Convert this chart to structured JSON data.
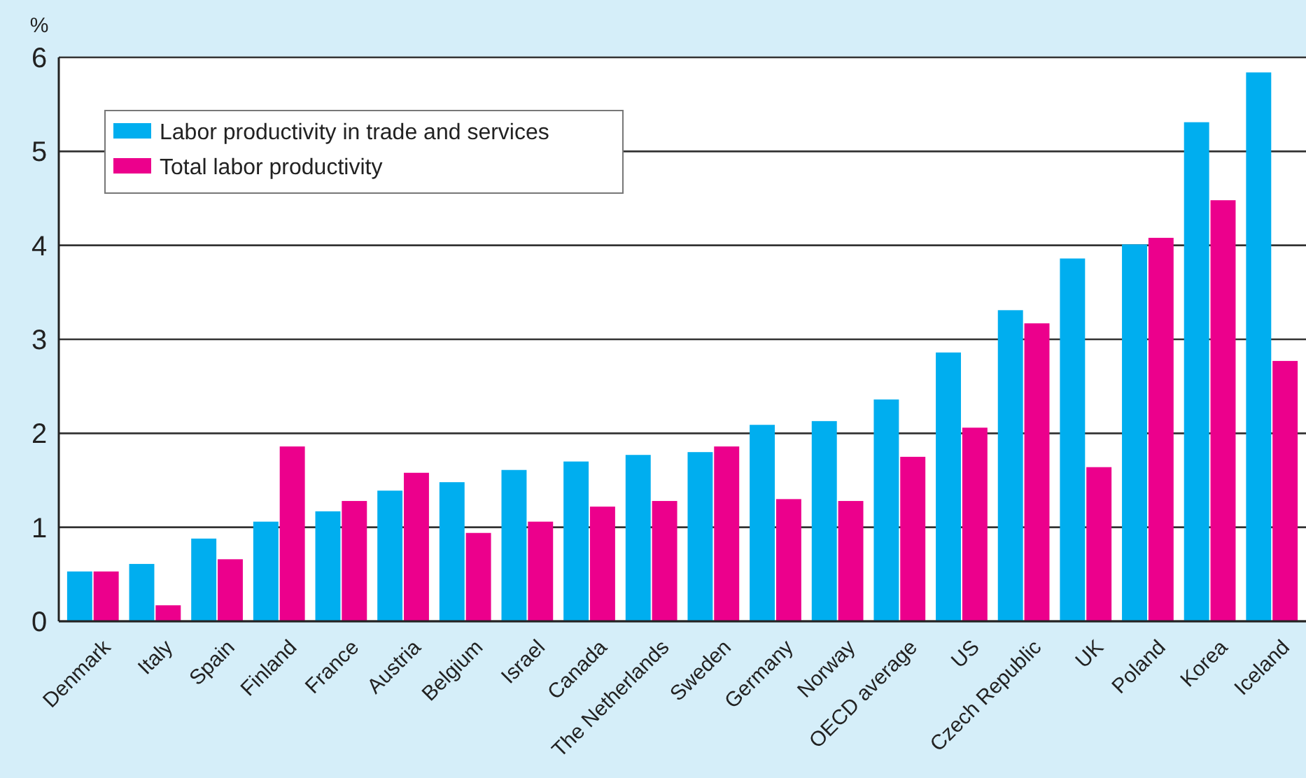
{
  "chart_data": {
    "type": "bar",
    "ylabel": "%",
    "categories": [
      "Denmark",
      "Italy",
      "Spain",
      "Finland",
      "France",
      "Austria",
      "Belgium",
      "Israel",
      "Canada",
      "The Netherlands",
      "Sweden",
      "Germany",
      "Norway",
      "OECD average",
      "US",
      "Czech Republic",
      "UK",
      "Poland",
      "Korea",
      "Iceland"
    ],
    "series": [
      {
        "name": "Labor productivity in trade and services",
        "color": "#00aeef",
        "values": [
          0.53,
          0.61,
          0.88,
          1.06,
          1.17,
          1.39,
          1.48,
          1.61,
          1.7,
          1.77,
          1.8,
          2.09,
          2.13,
          2.36,
          2.86,
          3.31,
          3.86,
          4.01,
          5.31,
          5.84
        ]
      },
      {
        "name": "Total labor productivity",
        "color": "#ec008c",
        "values": [
          0.53,
          0.17,
          0.66,
          1.86,
          1.28,
          1.58,
          0.94,
          1.06,
          1.22,
          1.28,
          1.86,
          1.3,
          1.28,
          1.75,
          2.06,
          3.17,
          1.64,
          4.08,
          4.48,
          2.77
        ]
      }
    ],
    "ylim": [
      0,
      6
    ],
    "yticks": [
      0,
      1,
      2,
      3,
      4,
      5,
      6
    ],
    "grid": "y",
    "legend": "top left"
  }
}
